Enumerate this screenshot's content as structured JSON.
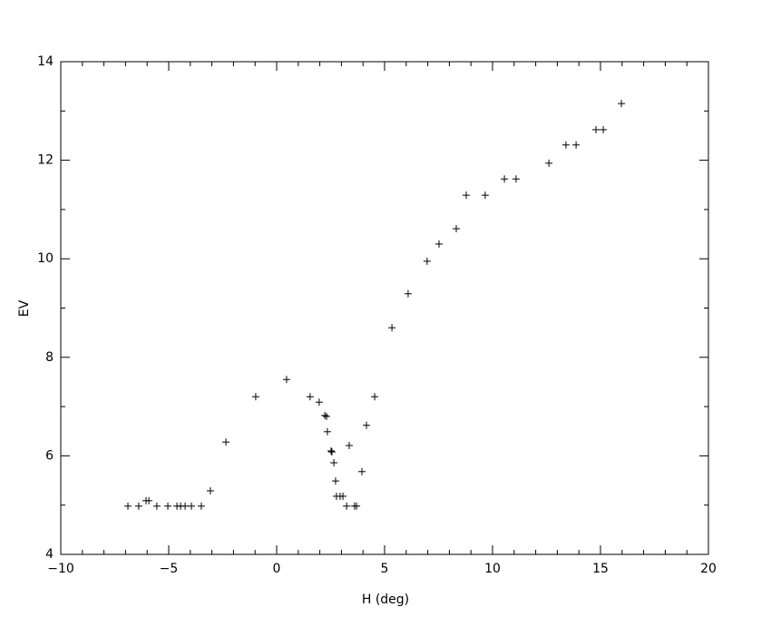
{
  "chart_data": {
    "type": "scatter",
    "x_label": "H (deg)",
    "y_label": "EV",
    "marker": "+",
    "color": "#000000",
    "xlim": [
      -10,
      20
    ],
    "xticks": [
      {
        "value": -10,
        "label": "−10"
      },
      {
        "value": -5,
        "label": "−5"
      },
      0,
      5,
      10,
      15,
      20
    ],
    "ylim": [
      4,
      14
    ],
    "yticks": [
      4,
      6,
      8,
      10,
      12,
      14
    ],
    "grid": false,
    "x": [
      -6.89,
      -6.39,
      -6.05,
      -5.92,
      -5.55,
      -5.04,
      -4.62,
      -4.45,
      -4.24,
      -3.95,
      -3.49,
      -3.07,
      -2.35,
      -0.97,
      0.46,
      1.55,
      1.97,
      2.23,
      2.31,
      2.35,
      2.52,
      2.56,
      2.65,
      2.73,
      2.77,
      2.94,
      3.07,
      3.24,
      3.36,
      3.61,
      3.7,
      3.95,
      4.16,
      4.54,
      5.34,
      6.09,
      6.97,
      7.52,
      8.32,
      8.78,
      9.66,
      10.55,
      11.09,
      12.61,
      13.4,
      13.87,
      14.79,
      15.13,
      15.97
    ],
    "values": [
      4.98,
      4.98,
      5.09,
      5.09,
      4.98,
      4.98,
      4.98,
      4.98,
      4.98,
      4.98,
      4.98,
      5.29,
      6.28,
      7.2,
      7.55,
      7.2,
      7.09,
      6.82,
      6.8,
      6.49,
      6.1,
      6.08,
      5.86,
      5.49,
      5.18,
      5.18,
      5.18,
      4.98,
      6.21,
      4.98,
      4.98,
      5.68,
      6.62,
      7.2,
      8.6,
      9.29,
      9.95,
      10.3,
      10.61,
      11.29,
      11.29,
      11.62,
      11.62,
      11.94,
      12.31,
      12.31,
      12.62,
      12.62,
      13.15
    ]
  }
}
